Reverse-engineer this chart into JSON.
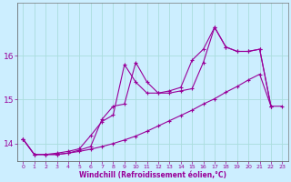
{
  "xlabel": "Windchill (Refroidissement éolien,°C)",
  "background_color": "#cceeff",
  "grid_color": "#aadddd",
  "line_color": "#990099",
  "xlim": [
    -0.5,
    23.5
  ],
  "ylim": [
    13.6,
    17.2
  ],
  "yticks": [
    14,
    15,
    16
  ],
  "xticks": [
    0,
    1,
    2,
    3,
    4,
    5,
    6,
    7,
    8,
    9,
    10,
    11,
    12,
    13,
    14,
    15,
    16,
    17,
    18,
    19,
    20,
    21,
    22,
    23
  ],
  "line1_x": [
    0,
    1,
    2,
    3,
    4,
    5,
    6,
    7,
    8,
    9,
    10,
    11,
    12,
    13,
    14,
    15,
    16,
    17,
    18,
    19,
    20,
    21,
    22,
    23
  ],
  "line1_y": [
    14.1,
    13.75,
    13.75,
    13.75,
    13.78,
    13.82,
    13.87,
    13.93,
    14.0,
    14.08,
    14.17,
    14.28,
    14.4,
    14.52,
    14.64,
    14.76,
    14.9,
    15.02,
    15.17,
    15.3,
    15.45,
    15.58,
    14.85,
    14.85
  ],
  "line2_x": [
    0,
    1,
    2,
    3,
    4,
    5,
    6,
    7,
    8,
    9,
    10,
    11,
    12,
    13,
    14,
    15,
    16,
    17,
    18,
    19,
    20,
    21,
    22
  ],
  "line2_y": [
    14.1,
    13.75,
    13.75,
    13.75,
    13.78,
    13.85,
    13.93,
    14.55,
    14.85,
    14.9,
    15.85,
    15.4,
    15.15,
    15.15,
    15.2,
    15.25,
    15.85,
    16.65,
    16.2,
    16.1,
    16.1,
    16.15,
    14.85
  ],
  "line3_x": [
    0,
    1,
    2,
    3,
    4,
    5,
    6,
    7,
    8,
    9,
    10,
    11,
    12,
    13,
    14,
    15,
    16,
    17,
    18,
    19,
    20,
    21,
    22
  ],
  "line3_y": [
    14.1,
    13.75,
    13.75,
    13.78,
    13.82,
    13.88,
    14.18,
    14.5,
    14.65,
    15.8,
    15.4,
    15.15,
    15.15,
    15.2,
    15.28,
    15.9,
    16.15,
    16.65,
    16.2,
    16.1,
    16.1,
    16.15,
    14.85
  ]
}
